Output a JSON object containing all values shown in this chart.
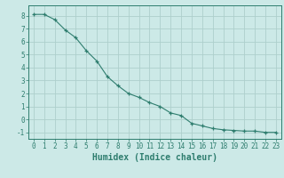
{
  "xlabel": "Humidex (Indice chaleur)",
  "ylabel": "",
  "x": [
    0,
    1,
    2,
    3,
    4,
    5,
    6,
    7,
    8,
    9,
    10,
    11,
    12,
    13,
    14,
    15,
    16,
    17,
    18,
    19,
    20,
    21,
    22,
    23
  ],
  "y": [
    8.1,
    8.1,
    7.7,
    6.9,
    6.3,
    5.3,
    4.5,
    3.3,
    2.6,
    2.0,
    1.7,
    1.3,
    1.0,
    0.5,
    0.3,
    -0.3,
    -0.5,
    -0.7,
    -0.8,
    -0.85,
    -0.9,
    -0.9,
    -1.0,
    -1.0
  ],
  "line_color": "#2e7d6e",
  "marker": "+",
  "background_color": "#cce9e7",
  "grid_color_major": "#aecfcc",
  "grid_color_minor": "#c2e2df",
  "tick_color": "#2e7d6e",
  "label_color": "#2e7d6e",
  "ylim": [
    -1.5,
    8.8
  ],
  "xlim": [
    -0.5,
    23.5
  ],
  "yticks": [
    -1,
    0,
    1,
    2,
    3,
    4,
    5,
    6,
    7,
    8
  ],
  "xticks": [
    0,
    1,
    2,
    3,
    4,
    5,
    6,
    7,
    8,
    9,
    10,
    11,
    12,
    13,
    14,
    15,
    16,
    17,
    18,
    19,
    20,
    21,
    22,
    23
  ],
  "tick_fontsize": 5.5,
  "xlabel_fontsize": 7.0
}
